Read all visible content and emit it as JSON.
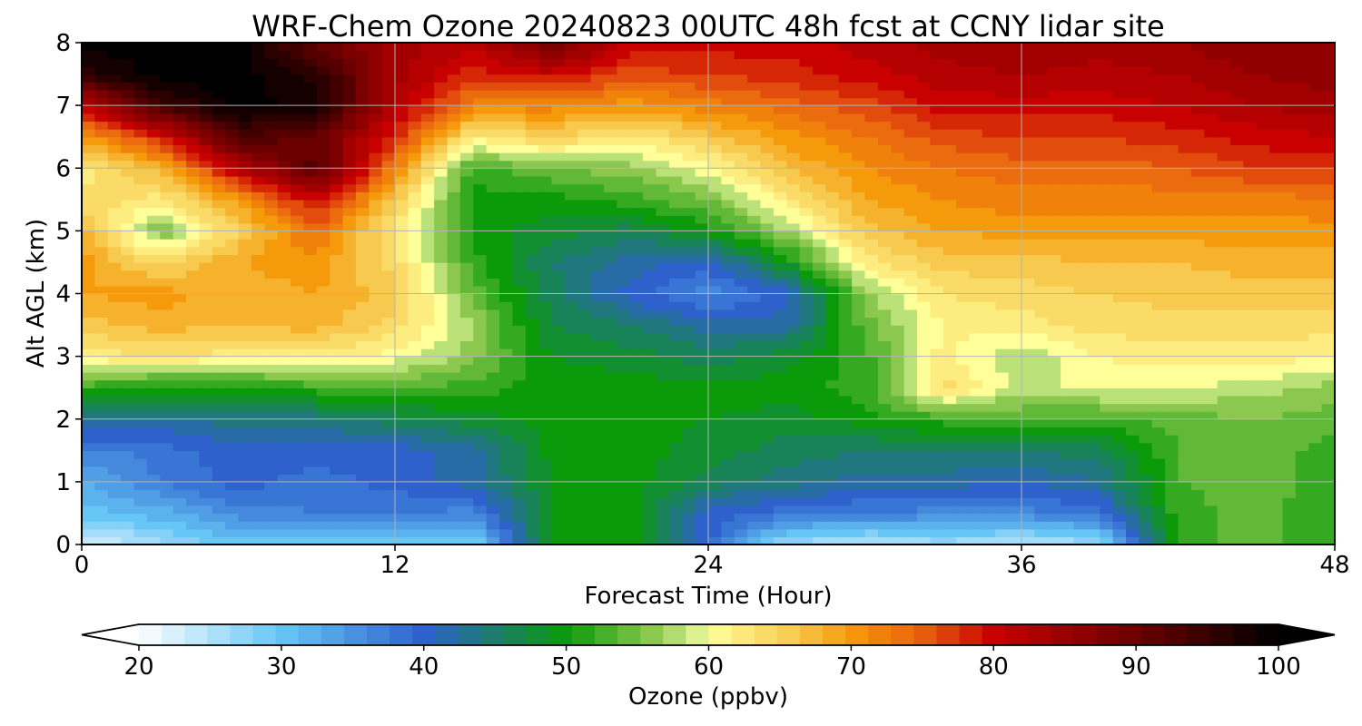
{
  "chart_data": {
    "type": "heatmap",
    "title": "WRF-Chem Ozone  20240823 00UTC 48h fcst at CCNY lidar site",
    "xlabel": "Forecast Time (Hour)",
    "ylabel": "Alt AGL (km)",
    "xlim": [
      0,
      48
    ],
    "ylim": [
      0,
      8
    ],
    "x_ticks": [
      "0",
      "12",
      "24",
      "36",
      "48"
    ],
    "y_ticks": [
      "0",
      "1",
      "2",
      "3",
      "4",
      "5",
      "6",
      "7",
      "8"
    ],
    "grid": true,
    "x_hours": [
      0,
      3,
      6,
      9,
      12,
      15,
      18,
      21,
      24,
      27,
      30,
      33,
      36,
      39,
      42,
      45,
      48
    ],
    "y_km": [
      0,
      0.5,
      1,
      1.5,
      2,
      2.5,
      3,
      3.5,
      4,
      4.5,
      5,
      5.5,
      6,
      6.5,
      7,
      7.5,
      8
    ],
    "z_ozone_ppbv": [
      [
        22,
        26,
        30,
        30,
        30,
        28,
        50,
        50,
        40,
        26,
        24,
        26,
        24,
        26,
        52,
        54,
        51
      ],
      [
        30,
        32,
        36,
        37,
        37,
        36,
        50,
        50,
        40,
        38,
        37,
        36,
        36,
        38,
        52,
        54,
        51
      ],
      [
        33,
        37,
        40,
        38,
        40,
        42,
        49,
        50,
        46,
        44,
        42,
        42,
        41,
        43,
        53,
        54,
        52
      ],
      [
        36,
        38,
        40,
        40,
        40,
        42,
        50,
        50,
        48,
        46,
        45,
        45,
        45,
        46,
        53,
        54,
        52
      ],
      [
        44,
        42,
        44,
        44,
        46,
        48,
        50,
        50,
        49,
        48,
        50,
        52,
        53,
        52,
        54,
        55,
        54
      ],
      [
        52,
        50,
        50,
        52,
        53,
        52,
        50,
        50,
        50,
        50,
        52,
        64,
        58,
        60,
        59,
        58,
        56
      ],
      [
        62,
        63,
        62,
        62,
        60,
        56,
        49,
        48,
        46,
        48,
        52,
        62,
        57,
        61,
        62,
        62,
        61
      ],
      [
        66,
        68,
        67,
        68,
        64,
        57,
        47,
        45,
        42,
        42,
        54,
        61,
        62,
        64,
        64,
        64,
        64
      ],
      [
        69,
        70,
        68,
        69,
        66,
        54,
        46,
        40,
        36,
        40,
        56,
        63,
        64,
        65,
        66,
        66,
        66
      ],
      [
        70,
        64,
        69,
        70,
        64,
        52,
        45,
        42,
        40,
        49,
        62,
        66,
        66,
        67,
        67,
        68,
        68
      ],
      [
        68,
        55,
        65,
        74,
        62,
        50,
        48,
        46,
        50,
        57,
        66,
        69,
        70,
        70,
        70,
        70,
        70
      ],
      [
        64,
        62,
        70,
        80,
        66,
        50,
        50,
        52,
        55,
        62,
        69,
        71,
        72,
        72,
        72,
        72,
        73
      ],
      [
        62,
        68,
        82,
        92,
        72,
        52,
        55,
        56,
        60,
        67,
        71,
        73,
        74,
        74,
        75,
        77,
        77
      ],
      [
        70,
        78,
        93,
        90,
        78,
        62,
        65,
        62,
        66,
        70,
        73,
        76,
        77,
        77,
        78,
        80,
        81
      ],
      [
        80,
        94,
        100,
        98,
        82,
        72,
        72,
        70,
        72,
        74,
        76,
        80,
        80,
        80,
        81,
        83,
        84
      ],
      [
        96,
        100,
        100,
        96,
        84,
        78,
        80,
        76,
        77,
        78,
        80,
        82,
        83,
        82,
        83,
        85,
        86
      ],
      [
        100,
        100,
        100,
        90,
        84,
        82,
        90,
        80,
        80,
        80,
        82,
        84,
        85,
        84,
        85,
        87,
        86
      ]
    ],
    "colorbar": {
      "label": "Ozone  (ppbv)",
      "min": 20,
      "max": 100,
      "ticks": [
        "20",
        "30",
        "40",
        "50",
        "60",
        "70",
        "80",
        "90",
        "100"
      ],
      "extend": "both",
      "color_stops": [
        [
          20,
          "#ffffff"
        ],
        [
          30,
          "#66c6f5"
        ],
        [
          40,
          "#2e61cc"
        ],
        [
          50,
          "#0a9a0a"
        ],
        [
          56,
          "#8cc84e"
        ],
        [
          59,
          "#d3ee8e"
        ],
        [
          60,
          "#ffff9a"
        ],
        [
          66,
          "#f8c94f"
        ],
        [
          70,
          "#f59a0a"
        ],
        [
          75,
          "#e85f10"
        ],
        [
          80,
          "#c80000"
        ],
        [
          90,
          "#6a0000"
        ],
        [
          100,
          "#000000"
        ]
      ]
    }
  }
}
